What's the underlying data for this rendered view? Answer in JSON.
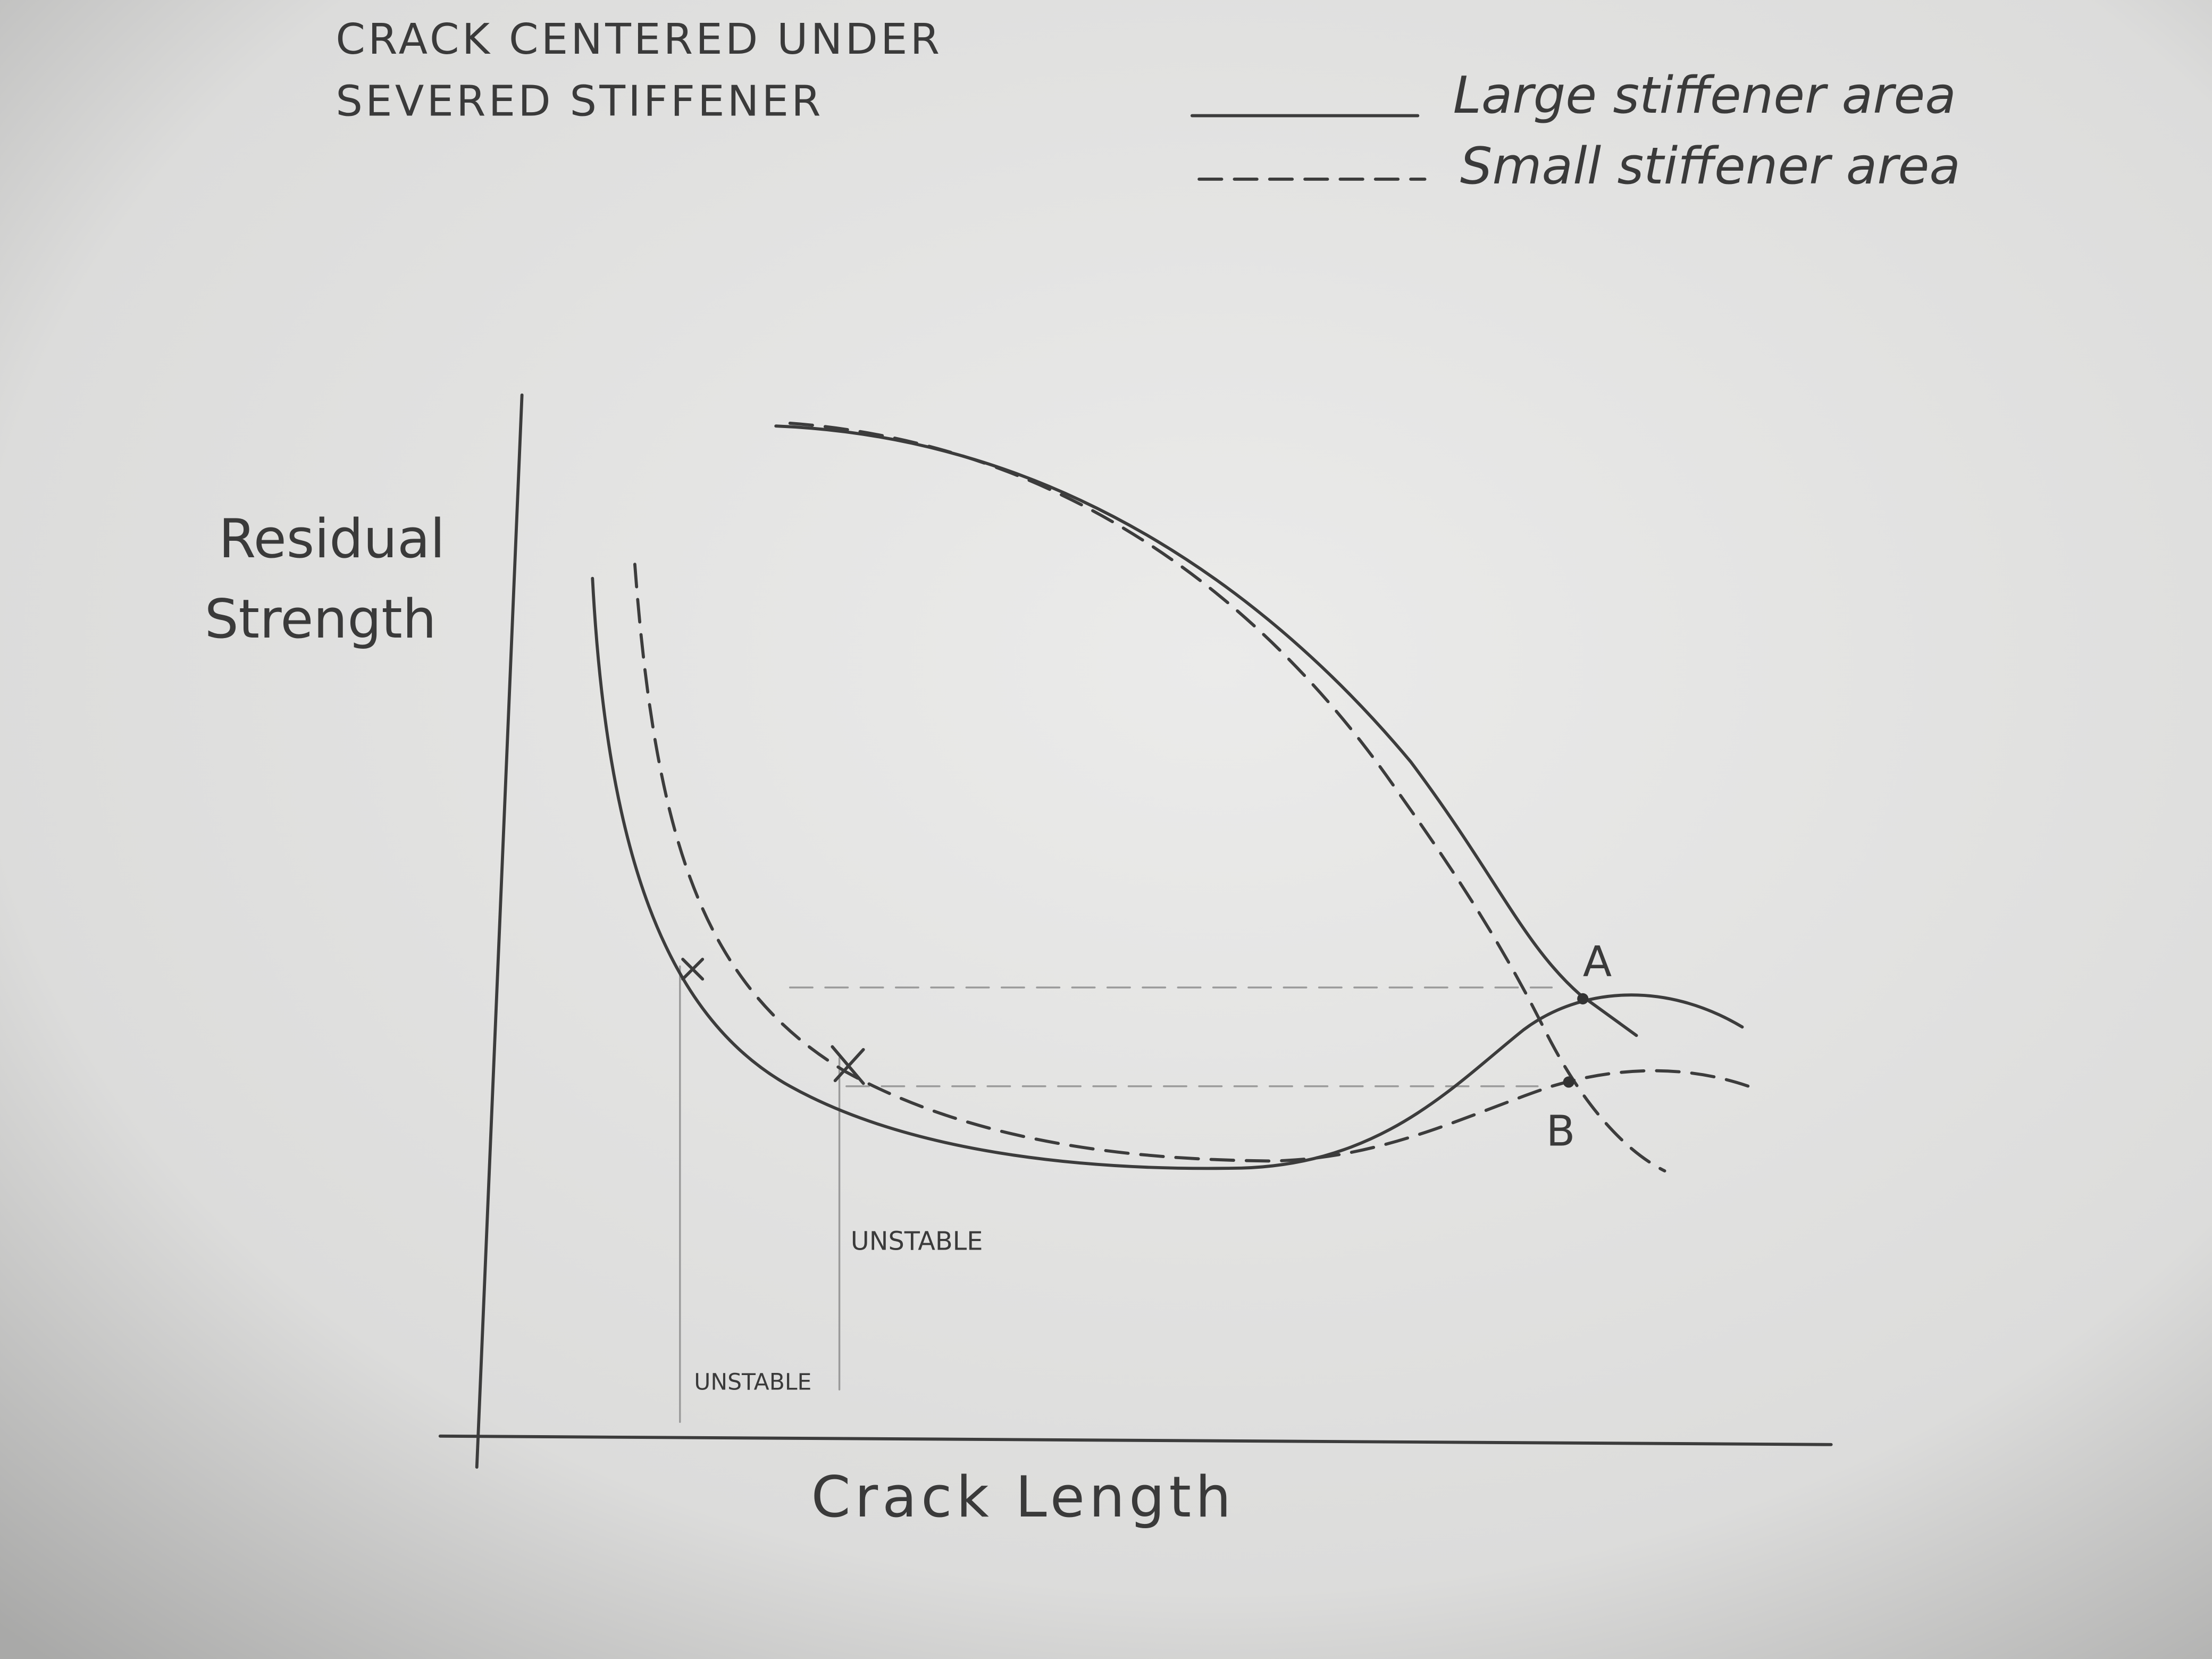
{
  "header": {
    "title_lines": [
      "CRACK CENTERED UNDER",
      "SEVERED STIFFENER"
    ]
  },
  "legend": {
    "entries": [
      {
        "label": "Large stiffener area",
        "style": "solid"
      },
      {
        "label": "Small stiffener area",
        "style": "dashed"
      }
    ]
  },
  "axes": {
    "y_label_lines": [
      "Residual",
      "Strength"
    ],
    "x_label": "Crack Length"
  },
  "points": [
    {
      "label": "A"
    },
    {
      "label": "B"
    }
  ],
  "annotations": [
    "UNSTABLE",
    "UNSTABLE"
  ]
}
